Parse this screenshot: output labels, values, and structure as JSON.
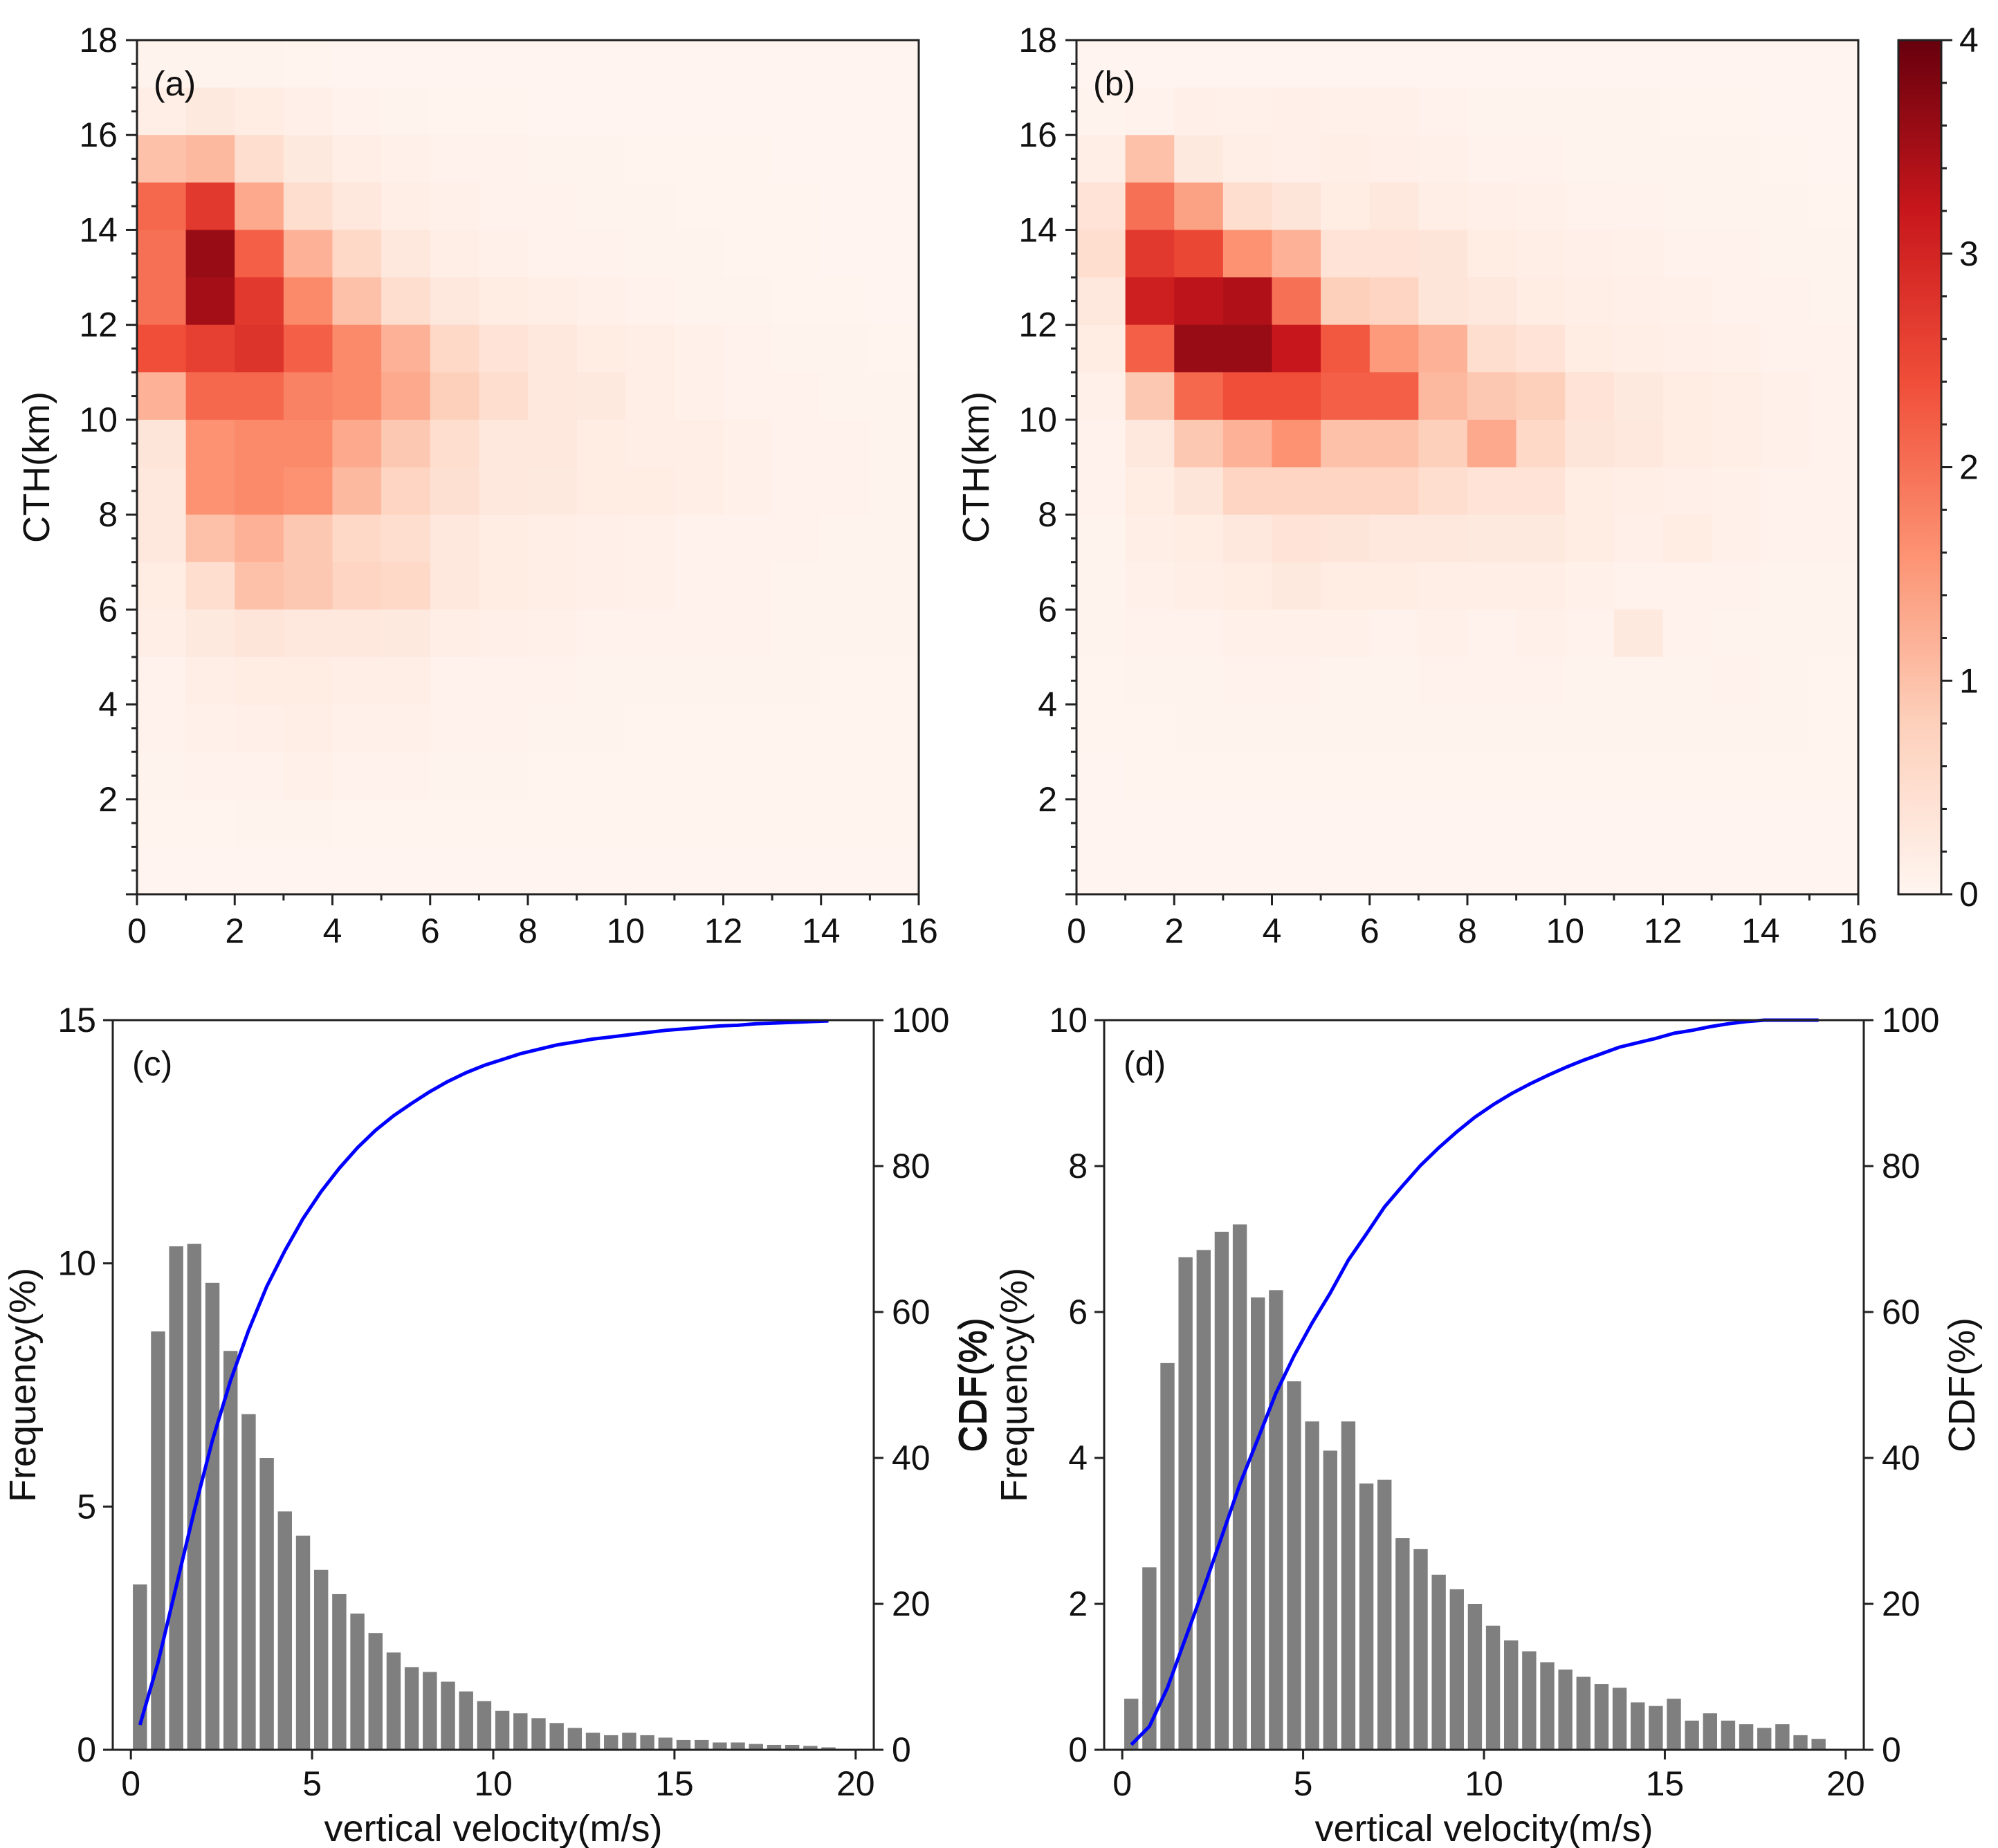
{
  "chart_data": [
    {
      "type": "heatmap",
      "panel_label": "(a)",
      "xlabel": "",
      "ylabel": "CTH(km)",
      "xlim": [
        0,
        16
      ],
      "ylim": [
        0,
        18
      ],
      "x_ticks": [
        "0",
        "2",
        "4",
        "6",
        "8",
        "10",
        "12",
        "14",
        "16"
      ],
      "y_ticks": [
        "2",
        "4",
        "6",
        "8",
        "10",
        "12",
        "14",
        "16",
        "18"
      ],
      "x_bin_edges": [
        0,
        1,
        2,
        3,
        4,
        5,
        6,
        7,
        8,
        9,
        10,
        11,
        12,
        13,
        14,
        15,
        16
      ],
      "y_bin_edges": [
        0,
        1,
        2,
        3,
        4,
        5,
        6,
        7,
        8,
        9,
        10,
        11,
        12,
        13,
        14,
        15,
        16,
        17,
        18
      ],
      "z_rows_top_to_bottom": [
        [
          0.05,
          0.05,
          0.05,
          0.03,
          0.02,
          0.02,
          0.02,
          0.02,
          0.02,
          0.02,
          0.02,
          0.02,
          0.02,
          0.02,
          0.02,
          0.02
        ],
        [
          0.15,
          0.25,
          0.2,
          0.12,
          0.08,
          0.05,
          0.03,
          0.03,
          0.02,
          0.02,
          0.02,
          0.02,
          0.02,
          0.02,
          0.02,
          0.02
        ],
        [
          1.0,
          1.1,
          0.5,
          0.25,
          0.15,
          0.1,
          0.08,
          0.06,
          0.05,
          0.04,
          0.03,
          0.03,
          0.03,
          0.02,
          0.02,
          0.02
        ],
        [
          2.1,
          2.7,
          1.3,
          0.5,
          0.3,
          0.15,
          0.1,
          0.08,
          0.06,
          0.05,
          0.04,
          0.03,
          0.03,
          0.03,
          0.02,
          0.02
        ],
        [
          2.0,
          3.6,
          2.2,
          1.2,
          0.6,
          0.3,
          0.15,
          0.1,
          0.08,
          0.06,
          0.05,
          0.04,
          0.03,
          0.03,
          0.02,
          0.02
        ],
        [
          2.0,
          3.5,
          2.7,
          1.7,
          1.0,
          0.5,
          0.3,
          0.2,
          0.15,
          0.1,
          0.08,
          0.05,
          0.04,
          0.03,
          0.03,
          0.02
        ],
        [
          2.4,
          2.6,
          2.8,
          2.2,
          1.7,
          1.2,
          0.6,
          0.4,
          0.3,
          0.2,
          0.15,
          0.1,
          0.08,
          0.05,
          0.04,
          0.03
        ],
        [
          1.2,
          2.1,
          2.1,
          1.8,
          1.7,
          1.3,
          0.8,
          0.5,
          0.3,
          0.25,
          0.15,
          0.1,
          0.08,
          0.06,
          0.05,
          0.04
        ],
        [
          0.35,
          1.6,
          1.7,
          1.7,
          1.3,
          0.9,
          0.5,
          0.3,
          0.3,
          0.2,
          0.15,
          0.15,
          0.1,
          0.08,
          0.06,
          0.05
        ],
        [
          0.3,
          1.6,
          1.7,
          1.6,
          1.1,
          0.7,
          0.45,
          0.3,
          0.25,
          0.2,
          0.2,
          0.15,
          0.1,
          0.08,
          0.06,
          0.05
        ],
        [
          0.3,
          1.0,
          1.2,
          0.9,
          0.6,
          0.5,
          0.3,
          0.2,
          0.15,
          0.12,
          0.1,
          0.08,
          0.06,
          0.06,
          0.05,
          0.05
        ],
        [
          0.2,
          0.5,
          1.0,
          0.9,
          0.7,
          0.6,
          0.3,
          0.2,
          0.15,
          0.12,
          0.1,
          0.08,
          0.06,
          0.05,
          0.05,
          0.04
        ],
        [
          0.15,
          0.25,
          0.35,
          0.3,
          0.3,
          0.25,
          0.15,
          0.12,
          0.1,
          0.08,
          0.08,
          0.06,
          0.06,
          0.05,
          0.04,
          0.04
        ],
        [
          0.08,
          0.15,
          0.2,
          0.2,
          0.15,
          0.15,
          0.08,
          0.08,
          0.06,
          0.05,
          0.05,
          0.05,
          0.04,
          0.04,
          0.03,
          0.03
        ],
        [
          0.06,
          0.1,
          0.12,
          0.15,
          0.1,
          0.1,
          0.06,
          0.06,
          0.05,
          0.05,
          0.03,
          0.03,
          0.03,
          0.03,
          0.03,
          0.03
        ],
        [
          0.04,
          0.06,
          0.08,
          0.1,
          0.06,
          0.06,
          0.05,
          0.04,
          0.03,
          0.03,
          0.03,
          0.03,
          0.03,
          0.03,
          0.03,
          0.03
        ],
        [
          0.03,
          0.03,
          0.04,
          0.04,
          0.03,
          0.03,
          0.03,
          0.03,
          0.03,
          0.03,
          0.03,
          0.03,
          0.03,
          0.03,
          0.03,
          0.03
        ],
        [
          0.02,
          0.02,
          0.02,
          0.02,
          0.02,
          0.02,
          0.02,
          0.02,
          0.02,
          0.02,
          0.02,
          0.02,
          0.02,
          0.02,
          0.02,
          0.02
        ]
      ]
    },
    {
      "type": "heatmap",
      "panel_label": "(b)",
      "xlabel": "",
      "ylabel": "CTH(km)",
      "xlim": [
        0,
        16
      ],
      "ylim": [
        0,
        18
      ],
      "x_ticks": [
        "0",
        "2",
        "4",
        "6",
        "8",
        "10",
        "12",
        "14",
        "16"
      ],
      "y_ticks": [
        "2",
        "4",
        "6",
        "8",
        "10",
        "12",
        "14",
        "16",
        "18"
      ],
      "colorbar": {
        "min": 0,
        "max": 4,
        "ticks": [
          "0",
          "1",
          "2",
          "3",
          "4"
        ],
        "colors": [
          "#fff5f0",
          "#fdd0bb",
          "#fc9272",
          "#f04e39",
          "#c8171c",
          "#67000d"
        ]
      },
      "x_bin_edges": [
        0,
        1,
        2,
        3,
        4,
        5,
        6,
        7,
        8,
        9,
        10,
        11,
        12,
        13,
        14,
        15,
        16
      ],
      "y_bin_edges": [
        0,
        1,
        2,
        3,
        4,
        5,
        6,
        7,
        8,
        9,
        10,
        11,
        12,
        13,
        14,
        15,
        16,
        17,
        18
      ],
      "z_rows_top_to_bottom": [
        [
          0.02,
          0.02,
          0.02,
          0.02,
          0.02,
          0.02,
          0.02,
          0.02,
          0.02,
          0.02,
          0.02,
          0.02,
          0.02,
          0.02,
          0.02,
          0.02
        ],
        [
          0.04,
          0.08,
          0.12,
          0.1,
          0.12,
          0.1,
          0.1,
          0.06,
          0.05,
          0.05,
          0.04,
          0.04,
          0.03,
          0.03,
          0.02,
          0.02
        ],
        [
          0.15,
          1.0,
          0.25,
          0.15,
          0.12,
          0.15,
          0.12,
          0.1,
          0.08,
          0.06,
          0.05,
          0.05,
          0.04,
          0.04,
          0.03,
          0.02
        ],
        [
          0.4,
          2.0,
          1.4,
          0.5,
          0.35,
          0.2,
          0.3,
          0.15,
          0.12,
          0.1,
          0.08,
          0.06,
          0.05,
          0.04,
          0.04,
          0.03
        ],
        [
          0.5,
          2.7,
          2.5,
          1.6,
          1.2,
          0.4,
          0.4,
          0.35,
          0.2,
          0.15,
          0.12,
          0.1,
          0.08,
          0.06,
          0.05,
          0.04
        ],
        [
          0.3,
          3.1,
          3.3,
          3.4,
          2.0,
          0.8,
          0.7,
          0.35,
          0.3,
          0.2,
          0.15,
          0.12,
          0.1,
          0.08,
          0.06,
          0.05
        ],
        [
          0.2,
          2.2,
          3.6,
          3.6,
          3.2,
          2.3,
          1.5,
          1.2,
          0.5,
          0.4,
          0.2,
          0.15,
          0.12,
          0.1,
          0.08,
          0.06
        ],
        [
          0.1,
          0.9,
          2.1,
          2.4,
          2.4,
          2.2,
          2.2,
          1.1,
          0.9,
          0.8,
          0.4,
          0.25,
          0.2,
          0.15,
          0.1,
          0.08
        ],
        [
          0.08,
          0.3,
          0.9,
          1.2,
          1.6,
          1.0,
          1.0,
          0.8,
          1.3,
          0.6,
          0.35,
          0.3,
          0.2,
          0.15,
          0.1,
          0.08
        ],
        [
          0.06,
          0.2,
          0.35,
          0.7,
          0.7,
          0.7,
          0.7,
          0.5,
          0.4,
          0.4,
          0.2,
          0.15,
          0.12,
          0.1,
          0.08,
          0.06
        ],
        [
          0.05,
          0.15,
          0.2,
          0.3,
          0.4,
          0.35,
          0.3,
          0.3,
          0.25,
          0.25,
          0.2,
          0.12,
          0.2,
          0.1,
          0.08,
          0.06
        ],
        [
          0.04,
          0.1,
          0.15,
          0.2,
          0.25,
          0.2,
          0.2,
          0.15,
          0.15,
          0.15,
          0.1,
          0.08,
          0.08,
          0.06,
          0.05,
          0.04
        ],
        [
          0.04,
          0.06,
          0.08,
          0.1,
          0.1,
          0.1,
          0.08,
          0.1,
          0.08,
          0.1,
          0.08,
          0.25,
          0.06,
          0.05,
          0.04,
          0.04
        ],
        [
          0.03,
          0.04,
          0.05,
          0.06,
          0.06,
          0.05,
          0.05,
          0.08,
          0.06,
          0.06,
          0.05,
          0.05,
          0.05,
          0.08,
          0.04,
          0.03
        ],
        [
          0.03,
          0.03,
          0.04,
          0.04,
          0.04,
          0.04,
          0.04,
          0.04,
          0.04,
          0.04,
          0.04,
          0.04,
          0.04,
          0.04,
          0.04,
          0.03
        ],
        [
          0.02,
          0.03,
          0.03,
          0.03,
          0.03,
          0.03,
          0.03,
          0.03,
          0.03,
          0.03,
          0.03,
          0.03,
          0.03,
          0.03,
          0.03,
          0.03
        ],
        [
          0.02,
          0.02,
          0.02,
          0.02,
          0.02,
          0.02,
          0.02,
          0.02,
          0.02,
          0.02,
          0.02,
          0.02,
          0.02,
          0.02,
          0.02,
          0.02
        ],
        [
          0.02,
          0.02,
          0.02,
          0.02,
          0.02,
          0.02,
          0.02,
          0.02,
          0.02,
          0.02,
          0.02,
          0.02,
          0.02,
          0.02,
          0.02,
          0.02
        ]
      ]
    },
    {
      "type": "bar",
      "panel_label": "(c)",
      "xlabel": "vertical velocity(m/s)",
      "ylabel": "Frequency(%)",
      "y2label": "CDF(%)",
      "xlim": [
        -0.5,
        20.5
      ],
      "ylim": [
        0,
        15
      ],
      "y2lim": [
        0,
        100
      ],
      "x_ticks": [
        "0",
        "5",
        "10",
        "15",
        "20"
      ],
      "y_ticks": [
        "0",
        "5",
        "10",
        "15"
      ],
      "y2_ticks": [
        "0",
        "20",
        "40",
        "60",
        "80",
        "100"
      ],
      "bar_color": "#7f7f7f",
      "line_color": "#0000ff",
      "x": [
        0.25,
        0.75,
        1.25,
        1.75,
        2.25,
        2.75,
        3.25,
        3.75,
        4.25,
        4.75,
        5.25,
        5.75,
        6.25,
        6.75,
        7.25,
        7.75,
        8.25,
        8.75,
        9.25,
        9.75,
        10.25,
        10.75,
        11.25,
        11.75,
        12.25,
        12.75,
        13.25,
        13.75,
        14.25,
        14.75,
        15.25,
        15.75,
        16.25,
        16.75,
        17.25,
        17.75,
        18.25,
        18.75,
        19.25
      ],
      "values": [
        3.4,
        8.6,
        10.35,
        10.4,
        9.6,
        8.2,
        6.9,
        6.0,
        4.9,
        4.4,
        3.7,
        3.2,
        2.8,
        2.4,
        2.0,
        1.7,
        1.6,
        1.4,
        1.2,
        1.0,
        0.8,
        0.75,
        0.65,
        0.55,
        0.45,
        0.35,
        0.3,
        0.35,
        0.3,
        0.25,
        0.2,
        0.2,
        0.15,
        0.15,
        0.12,
        0.1,
        0.1,
        0.08,
        0.05
      ],
      "cdf": {
        "x": [
          0.25,
          0.75,
          1.25,
          1.75,
          2.25,
          2.75,
          3.25,
          3.75,
          4.25,
          4.75,
          5.25,
          5.75,
          6.25,
          6.75,
          7.25,
          7.75,
          8.25,
          8.75,
          9.25,
          9.75,
          10.25,
          10.75,
          11.25,
          11.75,
          12.25,
          12.75,
          13.25,
          13.75,
          14.25,
          14.75,
          15.25,
          15.75,
          16.25,
          16.75,
          17.25,
          17.75,
          18.25,
          18.75,
          19.25
        ],
        "y": [
          3.4,
          12.0,
          22.4,
          32.8,
          42.4,
          50.6,
          57.5,
          63.5,
          68.4,
          72.8,
          76.5,
          79.7,
          82.5,
          84.9,
          86.9,
          88.6,
          90.2,
          91.6,
          92.8,
          93.8,
          94.6,
          95.4,
          96.0,
          96.6,
          97.0,
          97.4,
          97.7,
          98.0,
          98.3,
          98.6,
          98.8,
          99.0,
          99.2,
          99.3,
          99.5,
          99.6,
          99.7,
          99.8,
          99.9
        ]
      }
    },
    {
      "type": "bar",
      "panel_label": "(d)",
      "xlabel": "vertical velocity(m/s)",
      "ylabel": "CDF(%)\nFrequency(%)",
      "y2label": "CDF(%)",
      "xlim": [
        -0.5,
        20.5
      ],
      "ylim": [
        0,
        10
      ],
      "y2lim": [
        0,
        100
      ],
      "x_ticks": [
        "0",
        "5",
        "10",
        "15",
        "20"
      ],
      "y_ticks": [
        "0",
        "2",
        "4",
        "6",
        "8",
        "10"
      ],
      "y2_ticks": [
        "0",
        "20",
        "40",
        "60",
        "80",
        "100"
      ],
      "bar_color": "#7f7f7f",
      "line_color": "#0000ff",
      "x": [
        0.25,
        0.75,
        1.25,
        1.75,
        2.25,
        2.75,
        3.25,
        3.75,
        4.25,
        4.75,
        5.25,
        5.75,
        6.25,
        6.75,
        7.25,
        7.75,
        8.25,
        8.75,
        9.25,
        9.75,
        10.25,
        10.75,
        11.25,
        11.75,
        12.25,
        12.75,
        13.25,
        13.75,
        14.25,
        14.75,
        15.25,
        15.75,
        16.25,
        16.75,
        17.25,
        17.75,
        18.25,
        18.75,
        19.25
      ],
      "values": [
        0.7,
        2.5,
        5.3,
        6.75,
        6.85,
        7.1,
        7.2,
        6.2,
        6.3,
        5.05,
        4.5,
        4.1,
        4.5,
        3.65,
        3.7,
        2.9,
        2.75,
        2.4,
        2.2,
        2.0,
        1.7,
        1.5,
        1.35,
        1.2,
        1.1,
        1.0,
        0.9,
        0.85,
        0.65,
        0.6,
        0.7,
        0.4,
        0.5,
        0.4,
        0.35,
        0.3,
        0.35,
        0.2,
        0.15
      ],
      "cdf": {
        "x": [
          0.25,
          0.75,
          1.25,
          1.75,
          2.25,
          2.75,
          3.25,
          3.75,
          4.25,
          4.75,
          5.25,
          5.75,
          6.25,
          6.75,
          7.25,
          7.75,
          8.25,
          8.75,
          9.25,
          9.75,
          10.25,
          10.75,
          11.25,
          11.75,
          12.25,
          12.75,
          13.25,
          13.75,
          14.25,
          14.75,
          15.25,
          15.75,
          16.25,
          16.75,
          17.25,
          17.75,
          18.25,
          18.75,
          19.25
        ],
        "y": [
          0.7,
          3.2,
          8.5,
          15.3,
          22.1,
          29.2,
          36.4,
          42.6,
          48.9,
          54.0,
          58.5,
          62.6,
          67.1,
          70.7,
          74.4,
          77.3,
          80.1,
          82.5,
          84.7,
          86.7,
          88.4,
          89.9,
          91.2,
          92.4,
          93.5,
          94.5,
          95.4,
          96.3,
          96.9,
          97.5,
          98.2,
          98.6,
          99.1,
          99.5,
          99.8,
          100,
          100,
          100,
          100
        ]
      }
    }
  ]
}
